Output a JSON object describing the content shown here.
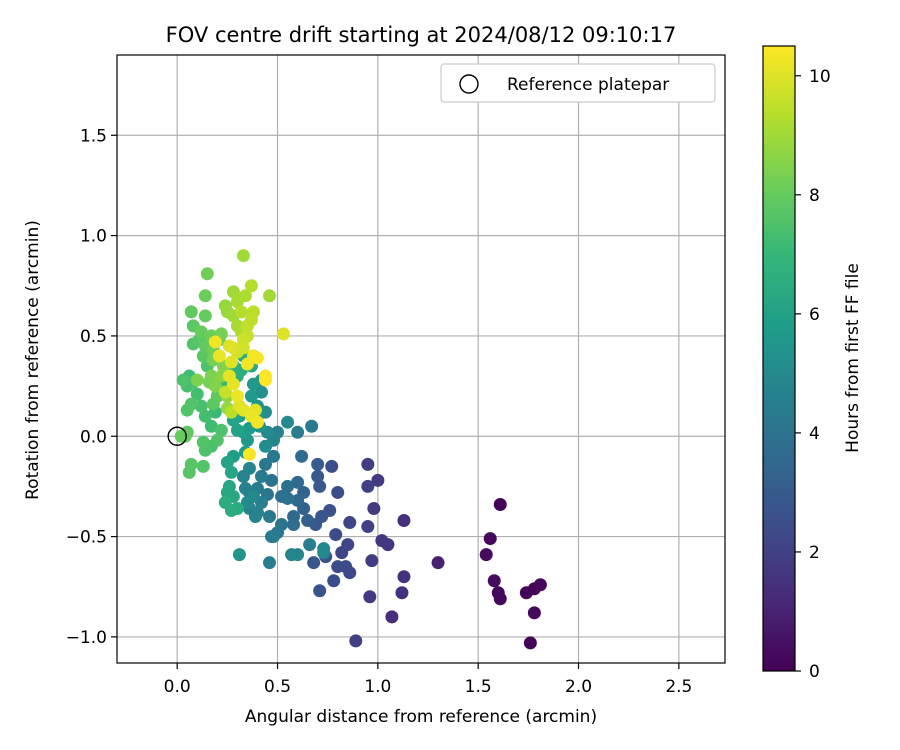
{
  "chart_data": {
    "type": "scatter",
    "title": "FOV centre drift starting at 2024/08/12 09:10:17",
    "xlabel": "Angular distance from reference (arcmin)",
    "ylabel": "Rotation from reference (arcmin)",
    "xlim": [
      -0.3,
      2.73
    ],
    "ylim": [
      -1.13,
      1.9
    ],
    "xticks": [
      0.0,
      0.5,
      1.0,
      1.5,
      2.0,
      2.5
    ],
    "xtick_labels": [
      "0.0",
      "0.5",
      "1.0",
      "1.5",
      "2.0",
      "2.5"
    ],
    "yticks": [
      -1.0,
      -0.5,
      0.0,
      0.5,
      1.0,
      1.5
    ],
    "ytick_labels": [
      "−1.0",
      "−0.5",
      "0.0",
      "0.5",
      "1.0",
      "1.5"
    ],
    "grid": true,
    "legend": {
      "placement": "top-right",
      "entries": [
        {
          "label": "Reference platepar",
          "marker": "open-circle",
          "x": 0.0,
          "y": 0.0
        }
      ]
    },
    "colorbar": {
      "label": "Hours from first FF file",
      "colormap": "viridis",
      "range": [
        0,
        10.5
      ],
      "ticks": [
        0,
        2,
        4,
        6,
        8,
        10
      ],
      "tick_labels": [
        "0",
        "2",
        "4",
        "6",
        "8",
        "10"
      ]
    },
    "series": [
      {
        "colored_by": "hours",
        "points": [
          [
            1.61,
            -0.34,
            0.1
          ],
          [
            1.56,
            -0.51,
            0.2
          ],
          [
            1.54,
            -0.59,
            0.3
          ],
          [
            1.58,
            -0.72,
            0.3
          ],
          [
            1.6,
            -0.78,
            0.2
          ],
          [
            1.61,
            -0.81,
            0.2
          ],
          [
            1.74,
            -0.78,
            0.1
          ],
          [
            1.78,
            -0.76,
            0.1
          ],
          [
            1.81,
            -0.74,
            0.2
          ],
          [
            1.78,
            -0.88,
            0.2
          ],
          [
            1.76,
            -1.03,
            0.1
          ],
          [
            1.3,
            -0.63,
            1.0
          ],
          [
            1.13,
            -0.42,
            1.4
          ],
          [
            1.13,
            -0.7,
            1.5
          ],
          [
            1.12,
            -0.78,
            1.5
          ],
          [
            1.07,
            -0.9,
            1.4
          ],
          [
            1.05,
            -0.54,
            1.6
          ],
          [
            1.02,
            -0.52,
            1.7
          ],
          [
            1.0,
            -0.22,
            1.8
          ],
          [
            0.98,
            -0.36,
            1.8
          ],
          [
            0.95,
            -0.14,
            1.9
          ],
          [
            0.95,
            -0.25,
            2.0
          ],
          [
            0.95,
            -0.45,
            2.0
          ],
          [
            0.97,
            -0.62,
            1.9
          ],
          [
            0.96,
            -0.8,
            1.8
          ],
          [
            0.89,
            -1.02,
            2.0
          ],
          [
            0.86,
            -0.43,
            2.2
          ],
          [
            0.85,
            -0.54,
            2.2
          ],
          [
            0.82,
            -0.58,
            2.2
          ],
          [
            0.84,
            -0.65,
            2.3
          ],
          [
            0.86,
            -0.68,
            2.3
          ],
          [
            0.8,
            -0.65,
            2.4
          ],
          [
            0.79,
            -0.49,
            2.4
          ],
          [
            0.8,
            -0.28,
            2.5
          ],
          [
            0.77,
            -0.15,
            2.5
          ],
          [
            0.76,
            -0.37,
            2.6
          ],
          [
            0.78,
            -0.72,
            2.5
          ],
          [
            0.74,
            -0.6,
            2.6
          ],
          [
            0.71,
            -0.77,
            2.7
          ],
          [
            0.72,
            -0.4,
            2.8
          ],
          [
            0.71,
            -0.25,
            2.9
          ],
          [
            0.7,
            -0.14,
            3.0
          ],
          [
            0.7,
            -0.2,
            2.9
          ],
          [
            0.69,
            -0.44,
            2.9
          ],
          [
            0.68,
            -0.63,
            2.8
          ],
          [
            0.73,
            -0.56,
            5.0
          ],
          [
            0.73,
            -0.58,
            4.9
          ],
          [
            0.66,
            -0.54,
            4.5
          ],
          [
            0.65,
            -0.42,
            3.2
          ],
          [
            0.63,
            -0.36,
            3.3
          ],
          [
            0.63,
            -0.28,
            3.4
          ],
          [
            0.6,
            -0.23,
            3.6
          ],
          [
            0.62,
            -0.1,
            3.6
          ],
          [
            0.6,
            -0.32,
            3.5
          ],
          [
            0.58,
            -0.4,
            3.6
          ],
          [
            0.58,
            -0.44,
            3.7
          ],
          [
            0.57,
            -0.59,
            4.7
          ],
          [
            0.6,
            -0.59,
            4.8
          ],
          [
            0.55,
            -0.25,
            3.8
          ],
          [
            0.55,
            -0.31,
            3.8
          ],
          [
            0.52,
            -0.3,
            3.9
          ],
          [
            0.52,
            -0.44,
            4.0
          ],
          [
            0.5,
            -0.48,
            4.2
          ],
          [
            0.48,
            -0.5,
            4.3
          ],
          [
            0.47,
            -0.5,
            4.4
          ],
          [
            0.46,
            -0.63,
            4.5
          ],
          [
            0.46,
            -0.4,
            4.2
          ],
          [
            0.45,
            -0.29,
            4.1
          ],
          [
            0.47,
            -0.22,
            4.0
          ],
          [
            0.48,
            -0.1,
            4.2
          ],
          [
            0.44,
            -0.14,
            4.2
          ],
          [
            0.42,
            -0.2,
            4.3
          ],
          [
            0.4,
            -0.26,
            4.4
          ],
          [
            0.42,
            -0.33,
            4.5
          ],
          [
            0.4,
            -0.38,
            4.6
          ],
          [
            0.39,
            -0.4,
            4.7
          ],
          [
            0.36,
            -0.36,
            4.7
          ],
          [
            0.36,
            -0.28,
            4.5
          ],
          [
            0.34,
            -0.26,
            4.6
          ],
          [
            0.33,
            -0.2,
            4.6
          ],
          [
            0.36,
            -0.16,
            4.8
          ],
          [
            0.31,
            -0.59,
            5.4
          ],
          [
            0.38,
            -0.3,
            4.9
          ],
          [
            0.35,
            -0.33,
            5.0
          ],
          [
            0.67,
            0.05,
            4.3
          ],
          [
            0.6,
            0.02,
            4.5
          ],
          [
            0.55,
            0.07,
            5.0
          ],
          [
            0.5,
            0.02,
            4.6
          ],
          [
            0.48,
            -0.02,
            4.8
          ],
          [
            0.45,
            0.02,
            5.0
          ],
          [
            0.44,
            -0.05,
            5.1
          ],
          [
            0.44,
            0.12,
            5.2
          ],
          [
            0.41,
            0.05,
            5.3
          ],
          [
            0.4,
            0.1,
            5.4
          ],
          [
            0.4,
            0.15,
            5.5
          ],
          [
            0.42,
            0.22,
            5.3
          ],
          [
            0.42,
            0.28,
            5.4
          ],
          [
            0.38,
            0.26,
            5.6
          ],
          [
            0.37,
            0.2,
            5.6
          ],
          [
            0.36,
            0.04,
            5.7
          ],
          [
            0.35,
            -0.02,
            5.6
          ],
          [
            0.34,
            -0.08,
            5.7
          ],
          [
            0.33,
            0.02,
            5.9
          ],
          [
            0.31,
            0.1,
            5.8
          ],
          [
            0.3,
            0.03,
            6.0
          ],
          [
            0.28,
            0.08,
            6.1
          ],
          [
            0.28,
            -0.1,
            5.9
          ],
          [
            0.27,
            -0.18,
            6.2
          ],
          [
            0.26,
            -0.25,
            6.2
          ],
          [
            0.25,
            -0.28,
            6.3
          ],
          [
            0.28,
            -0.3,
            6.3
          ],
          [
            0.3,
            -0.36,
            6.4
          ],
          [
            0.27,
            -0.37,
            6.5
          ],
          [
            0.24,
            -0.33,
            6.5
          ],
          [
            0.25,
            -0.13,
            6.1
          ],
          [
            0.38,
            0.4,
            6.2
          ],
          [
            0.37,
            0.35,
            6.3
          ],
          [
            0.33,
            0.4,
            6.5
          ],
          [
            0.32,
            0.33,
            6.6
          ],
          [
            0.3,
            0.3,
            6.6
          ],
          [
            0.28,
            0.35,
            6.7
          ],
          [
            0.25,
            0.28,
            6.8
          ],
          [
            0.24,
            0.33,
            6.9
          ],
          [
            0.22,
            0.25,
            7.0
          ],
          [
            0.2,
            0.2,
            7.0
          ],
          [
            0.19,
            0.12,
            7.1
          ],
          [
            0.17,
            0.05,
            7.2
          ],
          [
            0.14,
            0.1,
            7.3
          ],
          [
            0.12,
            0.15,
            7.4
          ],
          [
            0.1,
            0.21,
            7.3
          ],
          [
            0.08,
            0.27,
            7.4
          ],
          [
            0.06,
            0.3,
            7.2
          ],
          [
            0.05,
            0.25,
            7.4
          ],
          [
            0.03,
            0.28,
            7.5
          ],
          [
            0.05,
            0.13,
            7.6
          ],
          [
            0.07,
            0.16,
            7.6
          ],
          [
            0.05,
            0.02,
            7.8
          ],
          [
            0.04,
            0.0,
            7.9
          ],
          [
            0.02,
            0.0,
            8.0
          ],
          [
            0.07,
            -0.14,
            7.7
          ],
          [
            0.06,
            -0.18,
            7.7
          ],
          [
            0.13,
            -0.15,
            7.6
          ],
          [
            0.14,
            -0.07,
            7.5
          ],
          [
            0.13,
            -0.03,
            7.6
          ],
          [
            0.17,
            -0.05,
            7.4
          ],
          [
            0.2,
            -0.02,
            7.6
          ],
          [
            0.22,
            0.03,
            7.5
          ],
          [
            0.18,
            0.16,
            7.8
          ],
          [
            0.2,
            0.2,
            7.9
          ],
          [
            0.15,
            0.35,
            7.5
          ],
          [
            0.13,
            0.4,
            7.8
          ],
          [
            0.14,
            0.45,
            7.9
          ],
          [
            0.11,
            0.48,
            7.7
          ],
          [
            0.08,
            0.46,
            7.6
          ],
          [
            0.08,
            0.55,
            7.8
          ],
          [
            0.07,
            0.62,
            7.9
          ],
          [
            0.12,
            0.52,
            8.0
          ],
          [
            0.17,
            0.5,
            8.1
          ],
          [
            0.18,
            0.43,
            8.2
          ],
          [
            0.2,
            0.4,
            8.1
          ],
          [
            0.21,
            0.48,
            8.2
          ],
          [
            0.22,
            0.51,
            8.3
          ],
          [
            0.14,
            0.6,
            8.0
          ],
          [
            0.14,
            0.7,
            8.1
          ],
          [
            0.15,
            0.81,
            8.2
          ],
          [
            0.18,
            0.38,
            8.3
          ],
          [
            0.17,
            0.3,
            8.4
          ],
          [
            0.16,
            0.27,
            8.3
          ],
          [
            0.22,
            0.3,
            8.6
          ],
          [
            0.23,
            0.35,
            8.5
          ],
          [
            0.19,
            0.25,
            8.5
          ],
          [
            0.25,
            0.2,
            8.7
          ],
          [
            0.25,
            0.14,
            8.8
          ],
          [
            0.1,
            0.28,
            8.4
          ],
          [
            0.24,
            0.65,
            8.8
          ],
          [
            0.25,
            0.62,
            8.9
          ],
          [
            0.28,
            0.6,
            9.0
          ],
          [
            0.28,
            0.72,
            9.0
          ],
          [
            0.3,
            0.67,
            9.1
          ],
          [
            0.3,
            0.55,
            9.1
          ],
          [
            0.32,
            0.52,
            9.2
          ],
          [
            0.32,
            0.62,
            9.3
          ],
          [
            0.33,
            0.9,
            9.0
          ],
          [
            0.34,
            0.7,
            9.2
          ],
          [
            0.37,
            0.75,
            9.3
          ],
          [
            0.38,
            0.62,
            9.4
          ],
          [
            0.37,
            0.58,
            9.5
          ],
          [
            0.35,
            0.55,
            9.5
          ],
          [
            0.35,
            0.5,
            9.6
          ],
          [
            0.33,
            0.48,
            9.7
          ],
          [
            0.33,
            0.44,
            9.8
          ],
          [
            0.3,
            0.42,
            9.8
          ],
          [
            0.28,
            0.44,
            9.9
          ],
          [
            0.26,
            0.45,
            10.0
          ],
          [
            0.27,
            0.37,
            10.0
          ],
          [
            0.26,
            0.3,
            10.1
          ],
          [
            0.28,
            0.26,
            10.1
          ],
          [
            0.3,
            0.2,
            10.2
          ],
          [
            0.31,
            0.15,
            10.0
          ],
          [
            0.33,
            0.13,
            10.1
          ],
          [
            0.37,
            0.1,
            10.2
          ],
          [
            0.4,
            0.07,
            10.3
          ],
          [
            0.39,
            0.13,
            10.1
          ],
          [
            0.35,
            0.36,
            10.3
          ],
          [
            0.38,
            0.4,
            10.3
          ],
          [
            0.4,
            0.39,
            10.4
          ],
          [
            0.44,
            0.3,
            10.4
          ],
          [
            0.44,
            0.28,
            10.5
          ],
          [
            0.46,
            0.7,
            9.0
          ],
          [
            0.53,
            0.51,
            10.0
          ],
          [
            0.36,
            -0.09,
            10.5
          ],
          [
            0.19,
            0.47,
            10.3
          ],
          [
            0.21,
            0.4,
            10.2
          ],
          [
            0.24,
            0.22,
            9.6
          ],
          [
            0.27,
            0.12,
            9.4
          ]
        ]
      }
    ]
  }
}
